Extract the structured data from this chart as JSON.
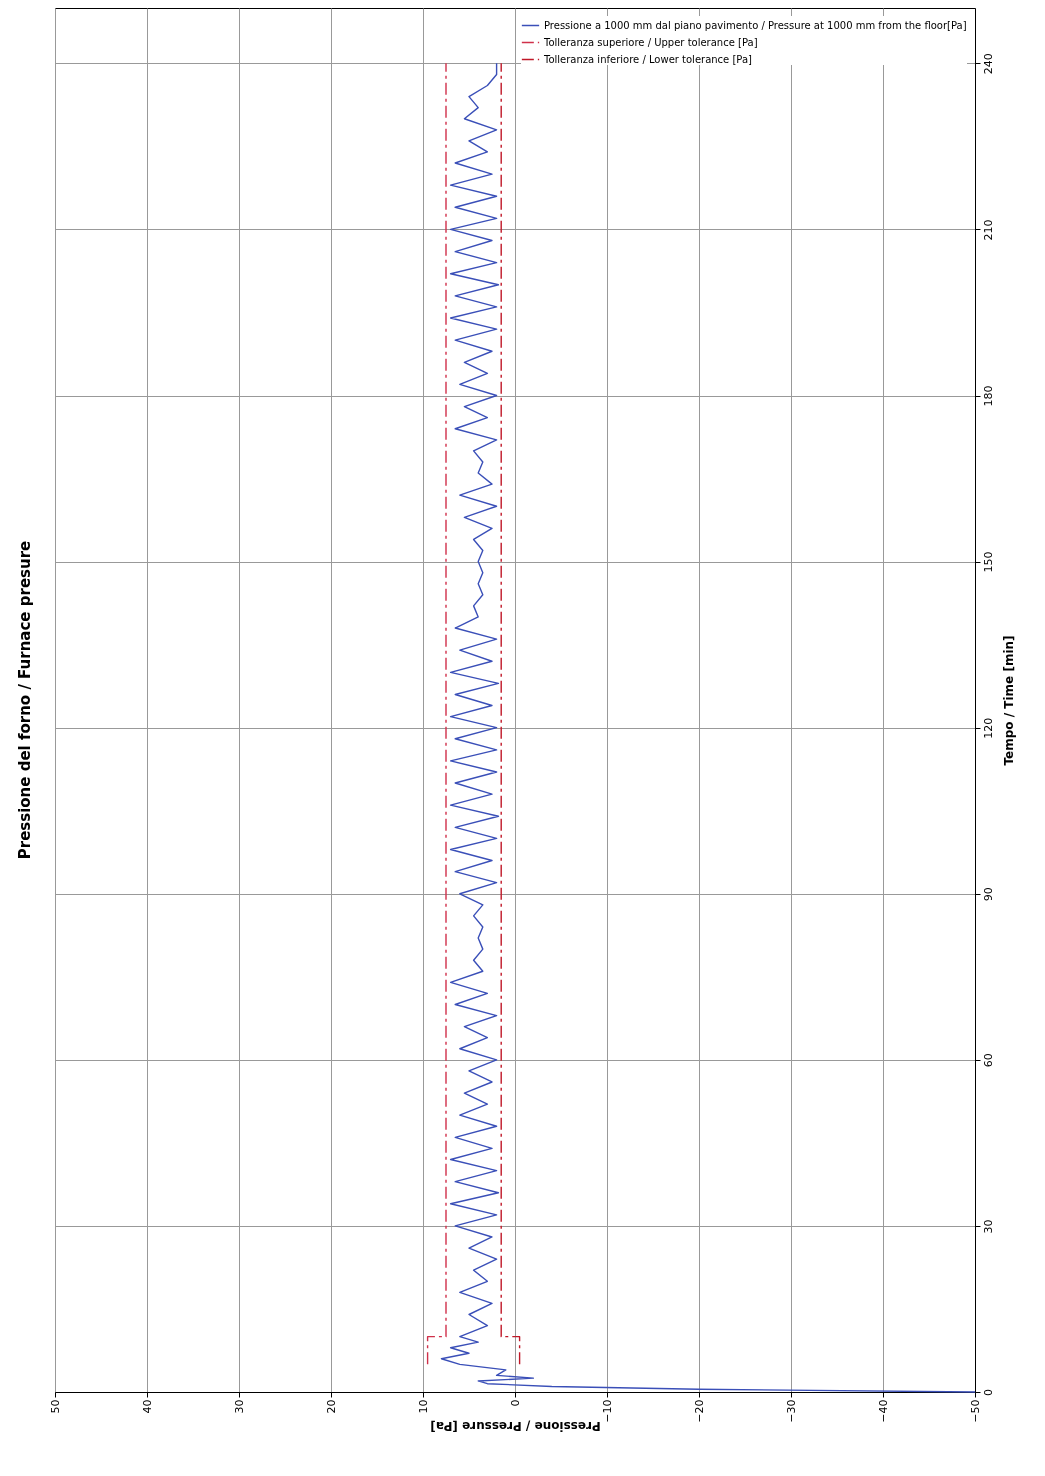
{
  "chart_data": {
    "type": "line",
    "title": "Pressione del forno / Furnace presure",
    "xlabel": "Pressione / Pressure [Pa]",
    "ylabel": "Tempo / Time [min]",
    "xlim": [
      50,
      -50
    ],
    "xticks": [
      50,
      40,
      30,
      20,
      10,
      0,
      -10,
      -20,
      -30,
      -40,
      -50
    ],
    "ylim": [
      0,
      250
    ],
    "yticks": [
      0,
      30,
      60,
      90,
      120,
      150,
      180,
      210,
      240
    ],
    "grid": true,
    "legend": "top right",
    "series": [
      {
        "name": "Pressione a 1000 mm dal piano pavimento / Pressure at 1000 mm from the floor[Pa]",
        "color": "#3a4fb8",
        "line_style": "solid",
        "values": [
          0,
          0.5,
          1,
          1.5,
          2,
          2.5,
          3,
          4,
          5,
          6,
          7,
          8,
          9,
          10,
          12,
          14,
          16,
          18,
          20,
          22,
          24,
          26,
          28,
          30,
          32,
          34,
          36,
          38,
          40,
          42,
          44,
          46,
          48,
          50,
          52,
          54,
          56,
          58,
          60,
          62,
          64,
          66,
          68,
          70,
          72,
          74,
          76,
          78,
          80,
          82,
          84,
          86,
          88,
          90,
          92,
          94,
          96,
          98,
          100,
          102,
          104,
          106,
          108,
          110,
          112,
          114,
          116,
          118,
          120,
          122,
          124,
          126,
          128,
          130,
          132,
          134,
          136,
          138,
          140,
          142,
          144,
          146,
          148,
          150,
          152,
          154,
          156,
          158,
          160,
          162,
          164,
          166,
          168,
          170,
          172,
          174,
          176,
          178,
          180,
          182,
          184,
          186,
          188,
          190,
          192,
          194,
          196,
          198,
          200,
          202,
          204,
          206,
          208,
          210,
          212,
          214,
          216,
          218,
          220,
          222,
          224,
          226,
          228,
          230,
          232,
          234,
          236,
          238,
          240
        ],
        "x": [
          -50,
          -20,
          -4,
          3,
          4,
          -2,
          2,
          1,
          6,
          8,
          5,
          7,
          4,
          6,
          3,
          5,
          2.5,
          6,
          3,
          4.5,
          2,
          5,
          2.5,
          6.5,
          2,
          7,
          1.8,
          6.5,
          2,
          7,
          2.5,
          6.5,
          2,
          6,
          3,
          5.5,
          2.5,
          5,
          2,
          6,
          3,
          5.5,
          2,
          6.5,
          3,
          7,
          3.5,
          4.5,
          3.5,
          4,
          3.5,
          4.5,
          3.5,
          6,
          2,
          6.5,
          2.5,
          7,
          2,
          6.5,
          1.8,
          7,
          2.5,
          6.5,
          2,
          7,
          2,
          6.5,
          2,
          7,
          2.5,
          6.5,
          1.8,
          7,
          2.5,
          6,
          2,
          6.5,
          4,
          4.5,
          3.5,
          4,
          3.5,
          4,
          3.5,
          4.5,
          2.5,
          5.5,
          2,
          6,
          2.5,
          4,
          3.5,
          4.5,
          2,
          6.5,
          3,
          5.5,
          2,
          6,
          3,
          5.5,
          2.5,
          6.5,
          2,
          7,
          2,
          6.5,
          1.8,
          7,
          2,
          6.5,
          2.5,
          7,
          2,
          6.5,
          2,
          7,
          2.5,
          6.5,
          3,
          5,
          2,
          5.5,
          4,
          5,
          3,
          2,
          2
        ]
      },
      {
        "name": "Tolleranza superiore / Upper tolerance [Pa]",
        "color": "#d0304a",
        "line_style": "dashed",
        "x": [
          9.5,
          9.5,
          7.5,
          7.5
        ],
        "values": [
          5,
          10,
          10,
          240
        ]
      },
      {
        "name": "Tolleranza inferiore / Lower tolerance [Pa]",
        "color": "#c01828",
        "line_style": "dashed",
        "x": [
          -0.5,
          -0.5,
          1.5,
          1.5
        ],
        "values": [
          5,
          10,
          10,
          240
        ]
      }
    ]
  }
}
